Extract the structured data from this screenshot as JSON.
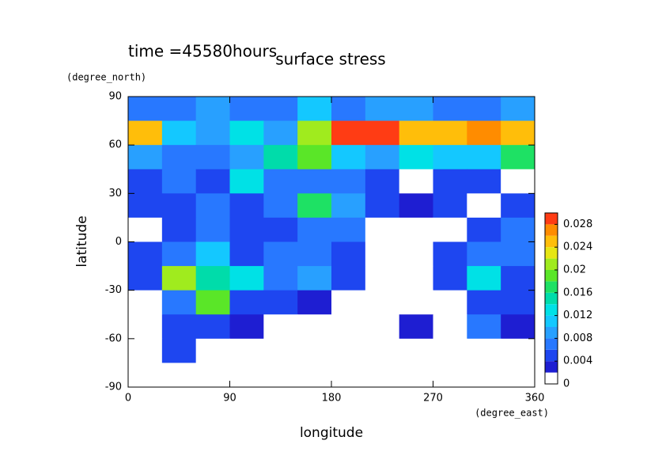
{
  "chart_data": {
    "type": "contour",
    "title": "surface stress",
    "subtitle": "time =45580hours",
    "x_label": "longitude",
    "x_unit": "(degree_east)",
    "y_label": "latitude",
    "y_unit": "(degree_north)",
    "xlim": [
      0,
      360
    ],
    "xticks": [
      0,
      90,
      180,
      270,
      360
    ],
    "ylim": [
      -90,
      90
    ],
    "yticks": [
      -90,
      -60,
      -30,
      0,
      30,
      60,
      90
    ],
    "x": [
      15,
      45,
      75,
      105,
      135,
      165,
      195,
      225,
      255,
      285,
      315,
      345
    ],
    "y": [
      82.5,
      67.5,
      52.5,
      37.5,
      22.5,
      7.5,
      -7.5,
      -22.5,
      -37.5,
      -52.5,
      -67.5,
      -82.5
    ],
    "z": [
      [
        0.006,
        0.006,
        0.008,
        0.006,
        0.006,
        0.01,
        0.006,
        0.008,
        0.008,
        0.006,
        0.006,
        0.008
      ],
      [
        0.024,
        0.01,
        0.008,
        0.012,
        0.008,
        0.02,
        0.03,
        0.03,
        0.024,
        0.024,
        0.026,
        0.024
      ],
      [
        0.008,
        0.006,
        0.006,
        0.008,
        0.014,
        0.018,
        0.01,
        0.008,
        0.012,
        0.01,
        0.01,
        0.016
      ],
      [
        0.004,
        0.006,
        0.004,
        0.012,
        0.006,
        0.006,
        0.006,
        0.004,
        0,
        0.004,
        0.004,
        0
      ],
      [
        0.004,
        0.004,
        0.006,
        0.004,
        0.006,
        0.016,
        0.008,
        0.004,
        0.002,
        0.004,
        0,
        0.004
      ],
      [
        0,
        0.004,
        0.006,
        0.004,
        0.004,
        0.006,
        0.006,
        0,
        0,
        0,
        0.004,
        0.006
      ],
      [
        0.004,
        0.006,
        0.01,
        0.004,
        0.006,
        0.006,
        0.004,
        0,
        0,
        0.004,
        0.006,
        0.006
      ],
      [
        0.004,
        0.02,
        0.014,
        0.012,
        0.006,
        0.008,
        0.004,
        0,
        0,
        0.004,
        0.012,
        0.004
      ],
      [
        0,
        0.006,
        0.018,
        0.004,
        0.004,
        0.002,
        0,
        0,
        0,
        0,
        0.004,
        0.004
      ],
      [
        0,
        0.004,
        0.004,
        0.002,
        0,
        0,
        0,
        0,
        0.002,
        0,
        0.006,
        0.002
      ],
      [
        0,
        0.004,
        0,
        0,
        0,
        0,
        0,
        0,
        0,
        0,
        0,
        0
      ],
      [
        0,
        0,
        0,
        0,
        0,
        0,
        0,
        0,
        0,
        0,
        0,
        0
      ]
    ],
    "clim": [
      0,
      0.03
    ],
    "cticks": [
      0,
      0.004,
      0.008,
      0.012,
      0.016,
      0.02,
      0.024,
      0.028
    ],
    "levels": [
      0,
      0.002,
      0.004,
      0.006,
      0.008,
      0.01,
      0.012,
      0.014,
      0.016,
      0.018,
      0.02,
      0.022,
      0.024,
      0.026,
      0.028,
      0.03
    ],
    "colors": [
      "#ffffff",
      "#1e1ed2",
      "#1e46f0",
      "#2878ff",
      "#28a0ff",
      "#14c8ff",
      "#00e1e6",
      "#00dcaa",
      "#1ee164",
      "#5ae628",
      "#a0eb1e",
      "#e6e614",
      "#ffbe0a",
      "#ff8c00",
      "#ff3c14"
    ]
  }
}
